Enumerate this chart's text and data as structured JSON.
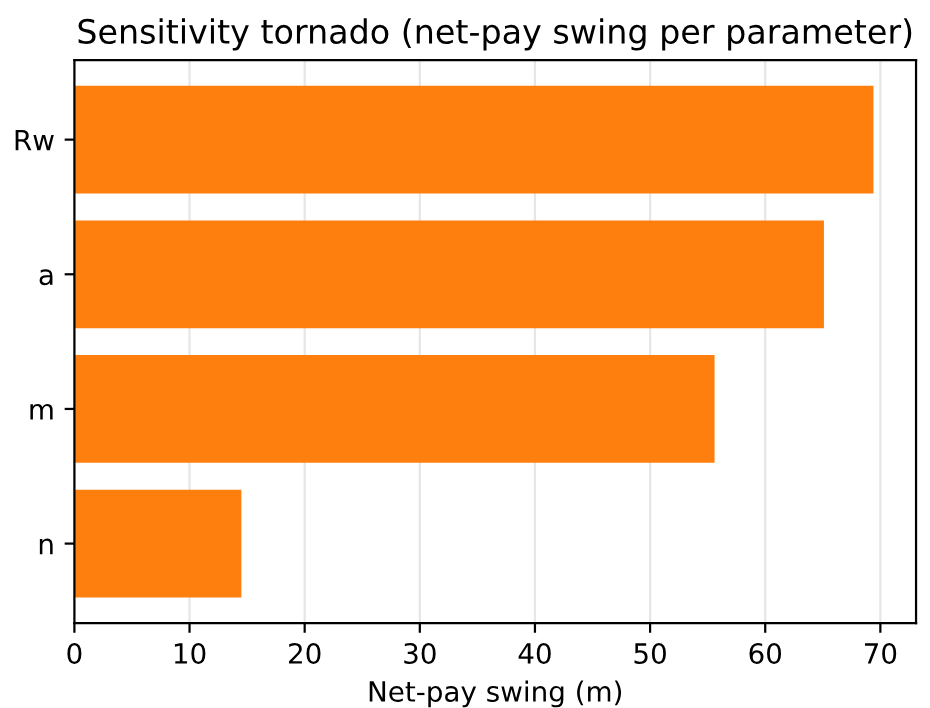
{
  "chart_data": {
    "type": "bar",
    "orientation": "horizontal",
    "title": "Sensitivity tornado (net-pay swing per parameter)",
    "xlabel": "Net-pay swing (m)",
    "categories": [
      "Rw",
      "a",
      "m",
      "n"
    ],
    "values": [
      69.4,
      65.1,
      55.6,
      14.5
    ],
    "color": "#ff7f0e",
    "xlim": [
      0,
      73.1
    ],
    "xticks": [
      0,
      10,
      20,
      30,
      40,
      50,
      60,
      70
    ],
    "grid": "x"
  }
}
